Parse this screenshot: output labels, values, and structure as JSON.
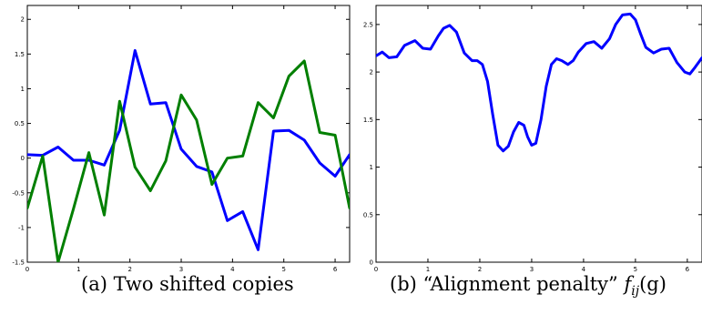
{
  "chart_data": [
    {
      "type": "line",
      "caption_tag": "(a)",
      "caption_text": "Two shifted copies",
      "xlim": [
        0,
        6.283
      ],
      "ylim": [
        -1.5,
        2.2
      ],
      "xticks": [
        "0",
        "1",
        "2",
        "3",
        "4",
        "5",
        "6"
      ],
      "yticks": [
        "-1.5",
        "-1",
        "-0.5",
        "0",
        "0.5",
        "1",
        "1.5",
        "2"
      ],
      "grid": false,
      "series": [
        {
          "color": "#0000ff",
          "x": [
            0,
            0.3,
            0.6,
            0.9,
            1.2,
            1.5,
            1.8,
            2.1,
            2.4,
            2.7,
            3.0,
            3.3,
            3.6,
            3.9,
            4.2,
            4.5,
            4.8,
            5.1,
            5.4,
            5.7,
            6.0,
            6.283
          ],
          "y": [
            0.05,
            0.04,
            0.16,
            -0.03,
            -0.03,
            -0.1,
            0.4,
            1.55,
            0.78,
            0.8,
            0.13,
            -0.12,
            -0.2,
            -0.9,
            -0.77,
            -1.32,
            0.39,
            0.4,
            0.26,
            -0.07,
            -0.26,
            0.05
          ]
        },
        {
          "color": "#007f00",
          "x": [
            0,
            0.3,
            0.6,
            0.9,
            1.2,
            1.5,
            1.8,
            2.1,
            2.4,
            2.7,
            3.0,
            3.3,
            3.6,
            3.9,
            4.2,
            4.5,
            4.8,
            5.1,
            5.4,
            5.7,
            6.0,
            6.283
          ],
          "y": [
            -0.72,
            0.03,
            -1.5,
            -0.73,
            0.08,
            -0.82,
            0.82,
            -0.13,
            -0.47,
            -0.04,
            0.91,
            0.55,
            -0.38,
            0.0,
            0.03,
            0.8,
            0.58,
            1.18,
            1.4,
            0.37,
            0.33,
            -0.72
          ]
        }
      ]
    },
    {
      "type": "line",
      "caption_tag": "(b)",
      "caption_quote": "“Alignment penalty”",
      "caption_math": "f",
      "caption_sub": "ij",
      "caption_arg": "(g)",
      "xlim": [
        0,
        6.283
      ],
      "ylim": [
        0,
        2.7
      ],
      "xticks": [
        "0",
        "1",
        "2",
        "3",
        "4",
        "5",
        "6"
      ],
      "yticks": [
        "0",
        "0.5",
        "1",
        "1.5",
        "2",
        "2.5"
      ],
      "grid": false,
      "series": [
        {
          "color": "#0000ff",
          "x": [
            0,
            0.12,
            0.25,
            0.4,
            0.55,
            0.75,
            0.9,
            1.05,
            1.2,
            1.3,
            1.42,
            1.55,
            1.7,
            1.85,
            1.95,
            2.05,
            2.15,
            2.25,
            2.35,
            2.45,
            2.55,
            2.65,
            2.75,
            2.85,
            2.92,
            3.0,
            3.08,
            3.18,
            3.28,
            3.38,
            3.48,
            3.58,
            3.7,
            3.8,
            3.9,
            4.05,
            4.2,
            4.35,
            4.5,
            4.62,
            4.75,
            4.9,
            5.0,
            5.1,
            5.2,
            5.35,
            5.5,
            5.65,
            5.8,
            5.95,
            6.05,
            6.15,
            6.283
          ],
          "y": [
            2.17,
            2.21,
            2.15,
            2.16,
            2.28,
            2.33,
            2.25,
            2.24,
            2.38,
            2.46,
            2.49,
            2.42,
            2.2,
            2.12,
            2.12,
            2.08,
            1.9,
            1.55,
            1.23,
            1.17,
            1.22,
            1.37,
            1.47,
            1.44,
            1.32,
            1.23,
            1.25,
            1.5,
            1.85,
            2.08,
            2.14,
            2.12,
            2.08,
            2.12,
            2.21,
            2.3,
            2.32,
            2.25,
            2.35,
            2.5,
            2.6,
            2.61,
            2.55,
            2.4,
            2.26,
            2.2,
            2.24,
            2.25,
            2.1,
            2.0,
            1.98,
            2.05,
            2.15
          ]
        }
      ]
    }
  ]
}
